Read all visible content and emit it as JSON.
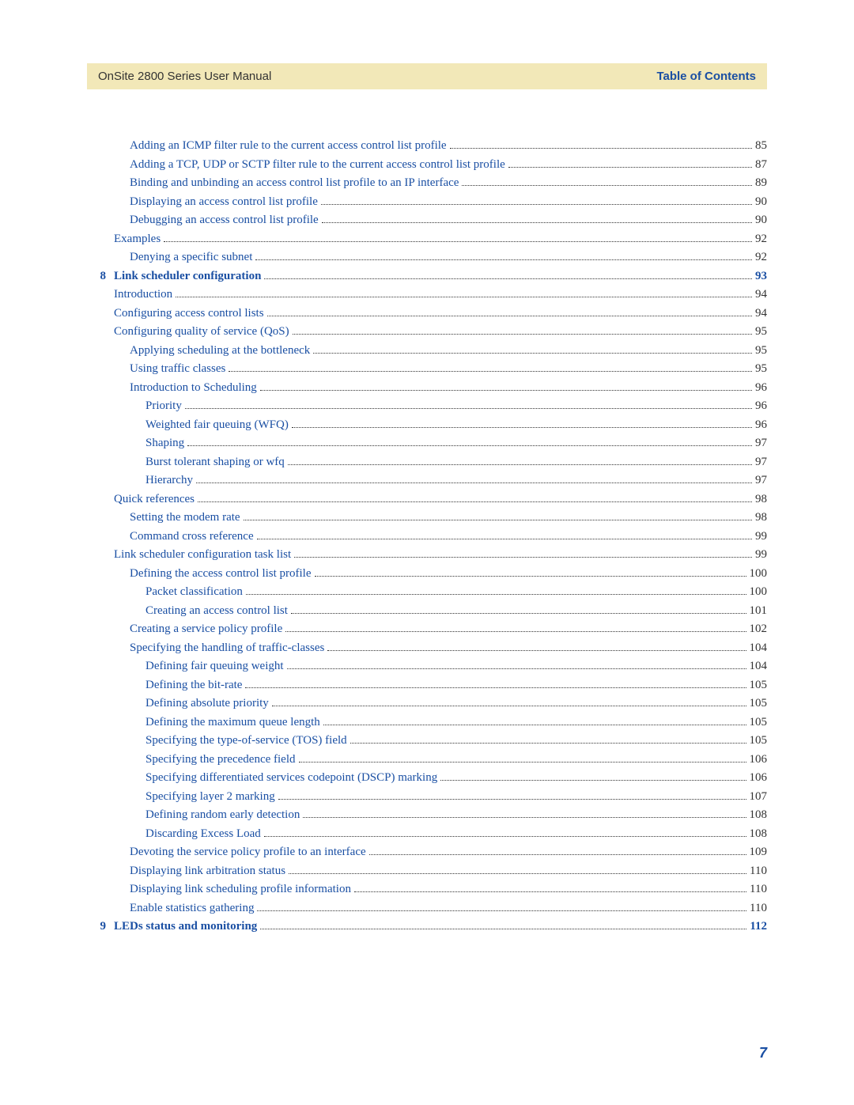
{
  "header": {
    "left": "OnSite 2800 Series User Manual",
    "right": "Table of Contents"
  },
  "page_number": "7",
  "entries": [
    {
      "indent": 2,
      "text": "Adding an ICMP filter rule to the current access control list profile",
      "page": "85",
      "bold": false,
      "num": ""
    },
    {
      "indent": 2,
      "text": "Adding a TCP, UDP or SCTP filter rule to the current access control list profile",
      "page": "87",
      "bold": false,
      "num": ""
    },
    {
      "indent": 2,
      "text": "Binding and unbinding an access control list profile to an IP interface",
      "page": "89",
      "bold": false,
      "num": ""
    },
    {
      "indent": 2,
      "text": "Displaying an access control list profile",
      "page": "90",
      "bold": false,
      "num": ""
    },
    {
      "indent": 2,
      "text": "Debugging an access control list profile",
      "page": "90",
      "bold": false,
      "num": ""
    },
    {
      "indent": 1,
      "text": "Examples",
      "page": "92",
      "bold": false,
      "num": ""
    },
    {
      "indent": 2,
      "text": "Denying a specific subnet",
      "page": "92",
      "bold": false,
      "num": ""
    },
    {
      "indent": 1,
      "text": "Link scheduler configuration",
      "page": "93",
      "bold": true,
      "num": "8"
    },
    {
      "indent": 1,
      "text": "Introduction",
      "page": "94",
      "bold": false,
      "num": ""
    },
    {
      "indent": 1,
      "text": "Configuring access control lists",
      "page": "94",
      "bold": false,
      "num": ""
    },
    {
      "indent": 1,
      "text": "Configuring quality of service (QoS)",
      "page": "95",
      "bold": false,
      "num": ""
    },
    {
      "indent": 2,
      "text": "Applying scheduling at the bottleneck",
      "page": "95",
      "bold": false,
      "num": ""
    },
    {
      "indent": 2,
      "text": "Using traffic classes",
      "page": "95",
      "bold": false,
      "num": ""
    },
    {
      "indent": 2,
      "text": "Introduction to Scheduling",
      "page": "96",
      "bold": false,
      "num": ""
    },
    {
      "indent": 3,
      "text": "Priority",
      "page": "96",
      "bold": false,
      "num": ""
    },
    {
      "indent": 3,
      "text": "Weighted fair queuing (WFQ)",
      "page": "96",
      "bold": false,
      "num": ""
    },
    {
      "indent": 3,
      "text": "Shaping",
      "page": "97",
      "bold": false,
      "num": ""
    },
    {
      "indent": 3,
      "text": "Burst tolerant shaping or wfq",
      "page": "97",
      "bold": false,
      "num": ""
    },
    {
      "indent": 3,
      "text": "Hierarchy",
      "page": "97",
      "bold": false,
      "num": ""
    },
    {
      "indent": 1,
      "text": "Quick references",
      "page": "98",
      "bold": false,
      "num": ""
    },
    {
      "indent": 2,
      "text": "Setting the modem rate",
      "page": "98",
      "bold": false,
      "num": ""
    },
    {
      "indent": 2,
      "text": "Command cross reference",
      "page": "99",
      "bold": false,
      "num": ""
    },
    {
      "indent": 1,
      "text": "Link scheduler configuration task list",
      "page": "99",
      "bold": false,
      "num": ""
    },
    {
      "indent": 2,
      "text": "Defining the access control list profile",
      "page": "100",
      "bold": false,
      "num": ""
    },
    {
      "indent": 3,
      "text": "Packet classification",
      "page": "100",
      "bold": false,
      "num": ""
    },
    {
      "indent": 3,
      "text": "Creating an access control list",
      "page": "101",
      "bold": false,
      "num": ""
    },
    {
      "indent": 2,
      "text": "Creating a service policy profile",
      "page": "102",
      "bold": false,
      "num": ""
    },
    {
      "indent": 2,
      "text": "Specifying the handling of traffic-classes",
      "page": "104",
      "bold": false,
      "num": ""
    },
    {
      "indent": 3,
      "text": "Defining fair queuing weight",
      "page": "104",
      "bold": false,
      "num": ""
    },
    {
      "indent": 3,
      "text": "Defining the bit-rate",
      "page": "105",
      "bold": false,
      "num": ""
    },
    {
      "indent": 3,
      "text": "Defining absolute priority",
      "page": "105",
      "bold": false,
      "num": ""
    },
    {
      "indent": 3,
      "text": "Defining the maximum queue length",
      "page": "105",
      "bold": false,
      "num": ""
    },
    {
      "indent": 3,
      "text": "Specifying the type-of-service (TOS) field",
      "page": "105",
      "bold": false,
      "num": ""
    },
    {
      "indent": 3,
      "text": "Specifying the precedence field",
      "page": "106",
      "bold": false,
      "num": ""
    },
    {
      "indent": 3,
      "text": "Specifying differentiated services codepoint (DSCP) marking",
      "page": "106",
      "bold": false,
      "num": ""
    },
    {
      "indent": 3,
      "text": "Specifying layer 2 marking",
      "page": "107",
      "bold": false,
      "num": ""
    },
    {
      "indent": 3,
      "text": "Defining random early detection",
      "page": "108",
      "bold": false,
      "num": ""
    },
    {
      "indent": 3,
      "text": "Discarding Excess Load",
      "page": "108",
      "bold": false,
      "num": ""
    },
    {
      "indent": 2,
      "text": "Devoting the service policy profile to an interface",
      "page": "109",
      "bold": false,
      "num": ""
    },
    {
      "indent": 2,
      "text": "Displaying link arbitration status",
      "page": "110",
      "bold": false,
      "num": ""
    },
    {
      "indent": 2,
      "text": "Displaying link scheduling profile information",
      "page": "110",
      "bold": false,
      "num": ""
    },
    {
      "indent": 2,
      "text": "Enable statistics gathering",
      "page": "110",
      "bold": false,
      "num": ""
    },
    {
      "indent": 1,
      "text": "LEDs status and monitoring",
      "page": "112",
      "bold": true,
      "num": "9"
    }
  ]
}
